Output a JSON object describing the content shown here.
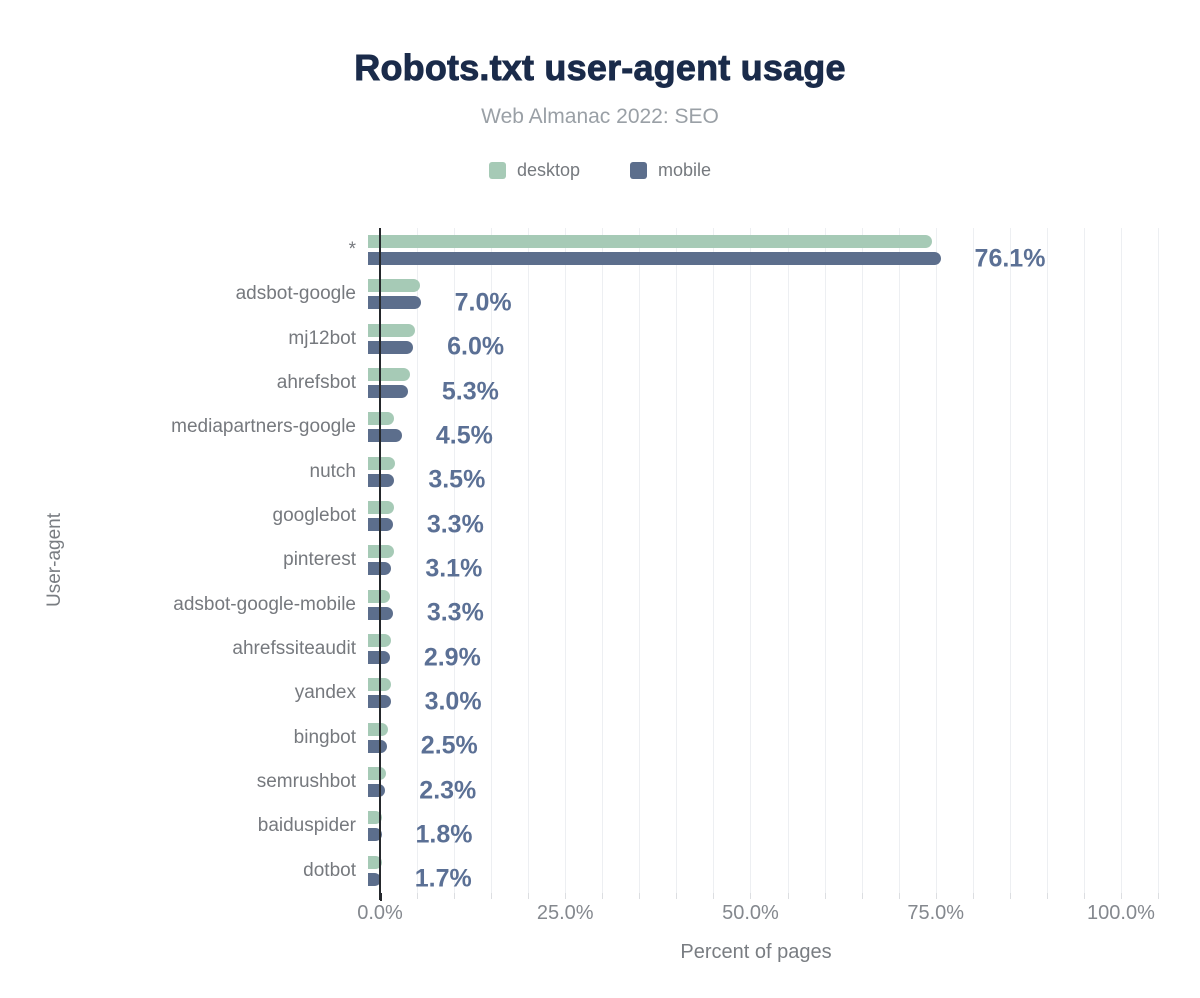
{
  "title": {
    "text": "Robots.txt user-agent usage",
    "color": "#1a2b4a"
  },
  "subtitle": {
    "text": "Web Almanac 2022: SEO",
    "color": "#9aa0a6"
  },
  "legend": {
    "items": [
      {
        "label": "desktop",
        "color": "#a6cab6"
      },
      {
        "label": "mobile",
        "color": "#5c6e8c"
      }
    ]
  },
  "chart_data": {
    "type": "bar",
    "orientation": "horizontal",
    "title": "Robots.txt user-agent usage",
    "subtitle": "Web Almanac 2022: SEO",
    "xlabel": "Percent of pages",
    "ylabel": "User-agent",
    "xlim": [
      0,
      105
    ],
    "grid": {
      "show": true,
      "interval_pct": 5
    },
    "legend_position": "top",
    "x_ticks": [
      {
        "value": 0,
        "label": "0.0%"
      },
      {
        "value": 25,
        "label": "25.0%"
      },
      {
        "value": 50,
        "label": "50.0%"
      },
      {
        "value": 75,
        "label": "75.0%"
      },
      {
        "value": 100,
        "label": "100.0%"
      }
    ],
    "categories": [
      "*",
      "adsbot-google",
      "mj12bot",
      "ahrefsbot",
      "mediapartners-google",
      "nutch",
      "googlebot",
      "pinterest",
      "adsbot-google-mobile",
      "ahrefssiteaudit",
      "yandex",
      "bingbot",
      "semrushbot",
      "baiduspider",
      "dotbot"
    ],
    "series": [
      {
        "name": "desktop",
        "color": "#a6cab6",
        "values": [
          74.9,
          6.9,
          6.3,
          5.6,
          3.4,
          3.6,
          3.4,
          3.4,
          2.9,
          3.0,
          3.0,
          2.6,
          2.4,
          1.9,
          1.8
        ]
      },
      {
        "name": "mobile",
        "color": "#5c6e8c",
        "values": [
          76.1,
          7.0,
          6.0,
          5.3,
          4.5,
          3.5,
          3.3,
          3.1,
          3.3,
          2.9,
          3.0,
          2.5,
          2.3,
          1.8,
          1.7
        ]
      }
    ],
    "annotations": {
      "series": "mobile",
      "color": "#5b7095",
      "labels": [
        "76.1%",
        "7.0%",
        "6.0%",
        "5.3%",
        "4.5%",
        "3.5%",
        "3.3%",
        "3.1%",
        "3.3%",
        "2.9%",
        "3.0%",
        "2.5%",
        "2.3%",
        "1.8%",
        "1.7%"
      ]
    }
  },
  "axis_style": {
    "axis_line_color": "#25282c",
    "gridline_color": "#edeff2",
    "tick_color": "#dcdee1",
    "tick_label_color": "#84888e",
    "category_label_color": "#76797e",
    "axis_title_color": "#797d82"
  }
}
